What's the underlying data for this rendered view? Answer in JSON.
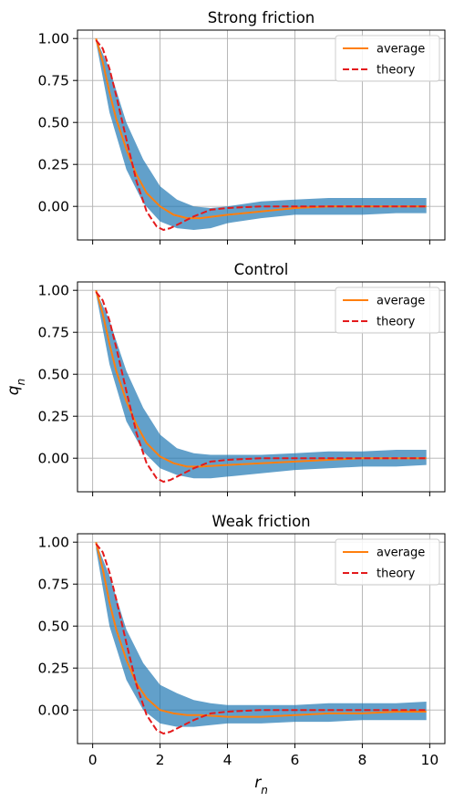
{
  "chart_data": [
    {
      "type": "line",
      "title": "Strong friction",
      "xlabel": "",
      "ylabel": "",
      "xlim": [
        -0.45,
        10.45
      ],
      "ylim": [
        -0.2,
        1.05
      ],
      "xticks": [
        0,
        2,
        4,
        6,
        8,
        10
      ],
      "xtick_labels_shown": false,
      "yticks": [
        0.0,
        0.25,
        0.5,
        0.75,
        1.0
      ],
      "ytick_labels": [
        "0.00",
        "0.25",
        "0.50",
        "0.75",
        "1.00"
      ],
      "grid": true,
      "legend_position": "top-right",
      "series": [
        {
          "name": "average",
          "style": "solid",
          "color": "#ff7f0e",
          "x": [
            0.1,
            0.3,
            0.5,
            0.7,
            1.0,
            1.3,
            1.6,
            2.0,
            2.4,
            2.8,
            3.2,
            4.0,
            5.0,
            6.0,
            7.0,
            8.0,
            9.0,
            9.9
          ],
          "y": [
            1.0,
            0.86,
            0.68,
            0.52,
            0.34,
            0.19,
            0.08,
            0.0,
            -0.05,
            -0.07,
            -0.07,
            -0.05,
            -0.03,
            -0.01,
            0.0,
            0.0,
            0.0,
            0.0
          ]
        },
        {
          "name": "theory",
          "style": "dashed",
          "color": "#e41a1c",
          "x": [
            0.1,
            0.3,
            0.5,
            0.7,
            1.0,
            1.3,
            1.6,
            1.9,
            2.1,
            2.3,
            2.6,
            3.0,
            3.5,
            4.0,
            5.0,
            6.0,
            7.0,
            8.0,
            9.0,
            9.9
          ],
          "y": [
            0.99,
            0.94,
            0.82,
            0.66,
            0.4,
            0.15,
            -0.03,
            -0.12,
            -0.14,
            -0.13,
            -0.1,
            -0.06,
            -0.02,
            -0.01,
            0.0,
            0.0,
            0.0,
            0.0,
            0.0,
            0.0
          ]
        }
      ],
      "band": {
        "color": "#1f77b4",
        "x": [
          0.1,
          0.5,
          1.0,
          1.5,
          2.0,
          2.5,
          3.0,
          3.5,
          4.0,
          5.0,
          6.0,
          7.0,
          8.0,
          9.0,
          9.9
        ],
        "lower": [
          0.98,
          0.56,
          0.22,
          0.02,
          -0.09,
          -0.13,
          -0.14,
          -0.13,
          -0.1,
          -0.07,
          -0.05,
          -0.05,
          -0.05,
          -0.04,
          -0.04
        ],
        "upper": [
          1.0,
          0.82,
          0.5,
          0.28,
          0.12,
          0.04,
          0.0,
          -0.01,
          0.0,
          0.03,
          0.04,
          0.05,
          0.05,
          0.05,
          0.05
        ]
      }
    },
    {
      "type": "line",
      "title": "Control",
      "xlabel": "",
      "ylabel": "q_n",
      "xlim": [
        -0.45,
        10.45
      ],
      "ylim": [
        -0.2,
        1.05
      ],
      "xticks": [
        0,
        2,
        4,
        6,
        8,
        10
      ],
      "xtick_labels_shown": false,
      "yticks": [
        0.0,
        0.25,
        0.5,
        0.75,
        1.0
      ],
      "ytick_labels": [
        "0.00",
        "0.25",
        "0.50",
        "0.75",
        "1.00"
      ],
      "grid": true,
      "legend_position": "top-right",
      "series": [
        {
          "name": "average",
          "style": "solid",
          "color": "#ff7f0e",
          "x": [
            0.1,
            0.3,
            0.5,
            0.7,
            1.0,
            1.3,
            1.6,
            2.0,
            2.4,
            2.8,
            3.2,
            4.0,
            5.0,
            6.0,
            7.0,
            8.0,
            9.0,
            9.9
          ],
          "y": [
            1.0,
            0.86,
            0.68,
            0.52,
            0.34,
            0.2,
            0.09,
            0.01,
            -0.03,
            -0.05,
            -0.05,
            -0.04,
            -0.03,
            -0.02,
            -0.01,
            0.0,
            0.0,
            0.0
          ]
        },
        {
          "name": "theory",
          "style": "dashed",
          "color": "#e41a1c",
          "x": [
            0.1,
            0.3,
            0.5,
            0.7,
            1.0,
            1.3,
            1.6,
            1.9,
            2.1,
            2.3,
            2.6,
            3.0,
            3.5,
            4.0,
            5.0,
            6.0,
            7.0,
            8.0,
            9.0,
            9.9
          ],
          "y": [
            0.99,
            0.94,
            0.82,
            0.66,
            0.4,
            0.15,
            -0.03,
            -0.12,
            -0.14,
            -0.13,
            -0.1,
            -0.06,
            -0.02,
            -0.01,
            0.0,
            0.0,
            0.0,
            0.0,
            0.0,
            0.0
          ]
        }
      ],
      "band": {
        "color": "#1f77b4",
        "x": [
          0.1,
          0.5,
          1.0,
          1.5,
          2.0,
          2.5,
          3.0,
          3.5,
          4.0,
          5.0,
          6.0,
          7.0,
          8.0,
          9.0,
          9.9
        ],
        "lower": [
          0.98,
          0.56,
          0.22,
          0.04,
          -0.06,
          -0.1,
          -0.12,
          -0.12,
          -0.11,
          -0.09,
          -0.07,
          -0.06,
          -0.05,
          -0.05,
          -0.04
        ],
        "upper": [
          1.0,
          0.82,
          0.52,
          0.3,
          0.14,
          0.06,
          0.03,
          0.02,
          0.02,
          0.02,
          0.03,
          0.04,
          0.04,
          0.05,
          0.05
        ]
      }
    },
    {
      "type": "line",
      "title": "Weak friction",
      "xlabel": "r_n",
      "ylabel": "",
      "xlim": [
        -0.45,
        10.45
      ],
      "ylim": [
        -0.2,
        1.05
      ],
      "xticks": [
        0,
        2,
        4,
        6,
        8,
        10
      ],
      "xtick_labels": [
        "0",
        "2",
        "4",
        "6",
        "8",
        "10"
      ],
      "xtick_labels_shown": true,
      "yticks": [
        0.0,
        0.25,
        0.5,
        0.75,
        1.0
      ],
      "ytick_labels": [
        "0.00",
        "0.25",
        "0.50",
        "0.75",
        "1.00"
      ],
      "grid": true,
      "legend_position": "top-right",
      "series": [
        {
          "name": "average",
          "style": "solid",
          "color": "#ff7f0e",
          "x": [
            0.1,
            0.3,
            0.5,
            0.7,
            1.0,
            1.3,
            1.6,
            2.0,
            2.4,
            2.8,
            3.2,
            4.0,
            5.0,
            6.0,
            7.0,
            8.0,
            9.0,
            9.9
          ],
          "y": [
            1.0,
            0.84,
            0.64,
            0.48,
            0.3,
            0.16,
            0.07,
            0.0,
            -0.02,
            -0.03,
            -0.03,
            -0.04,
            -0.04,
            -0.03,
            -0.02,
            -0.02,
            -0.01,
            -0.01
          ]
        },
        {
          "name": "theory",
          "style": "dashed",
          "color": "#e41a1c",
          "x": [
            0.1,
            0.3,
            0.5,
            0.7,
            1.0,
            1.3,
            1.6,
            1.9,
            2.1,
            2.3,
            2.6,
            3.0,
            3.5,
            4.0,
            5.0,
            6.0,
            7.0,
            8.0,
            9.0,
            9.9
          ],
          "y": [
            0.99,
            0.94,
            0.82,
            0.66,
            0.4,
            0.15,
            -0.03,
            -0.12,
            -0.14,
            -0.13,
            -0.1,
            -0.06,
            -0.02,
            -0.01,
            0.0,
            0.0,
            0.0,
            0.0,
            0.0,
            0.0
          ]
        }
      ],
      "band": {
        "color": "#1f77b4",
        "x": [
          0.1,
          0.5,
          1.0,
          1.5,
          2.0,
          2.5,
          3.0,
          3.5,
          4.0,
          5.0,
          6.0,
          7.0,
          8.0,
          9.0,
          9.9
        ],
        "lower": [
          0.96,
          0.5,
          0.18,
          0.0,
          -0.08,
          -0.1,
          -0.1,
          -0.09,
          -0.08,
          -0.08,
          -0.07,
          -0.07,
          -0.06,
          -0.06,
          -0.06
        ],
        "upper": [
          1.0,
          0.8,
          0.48,
          0.28,
          0.15,
          0.1,
          0.06,
          0.04,
          0.03,
          0.03,
          0.03,
          0.04,
          0.04,
          0.04,
          0.05
        ]
      }
    }
  ]
}
